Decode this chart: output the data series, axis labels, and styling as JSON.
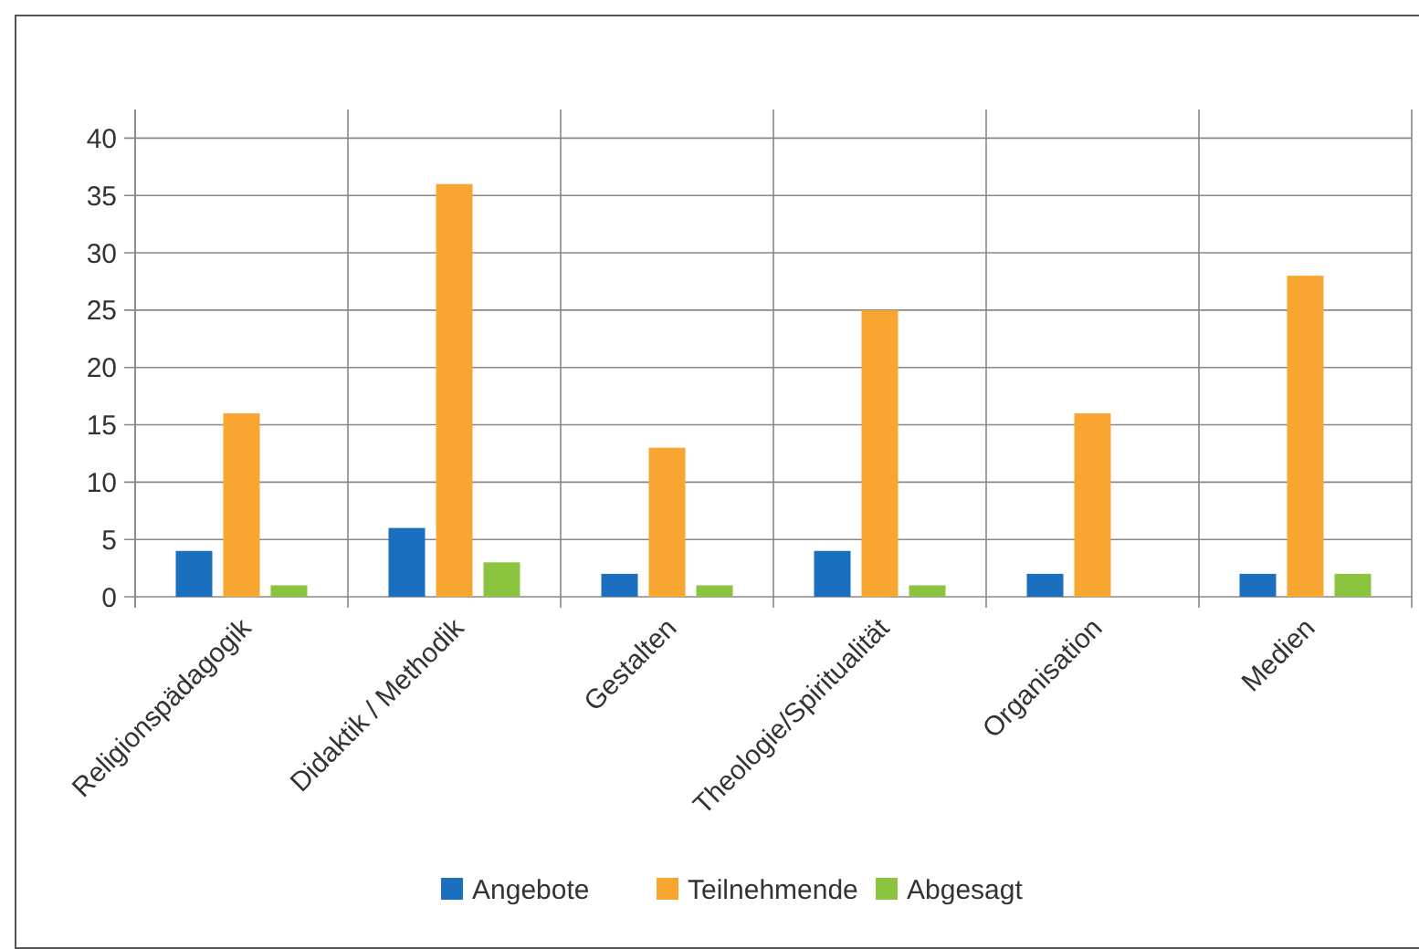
{
  "chart_data": {
    "type": "bar",
    "categories": [
      "Religionspädagogik",
      "Didaktik / Methodik",
      "Gestalten",
      "Theologie/Spiritualität",
      "Organisation",
      "Medien"
    ],
    "series": [
      {
        "name": "Angebote",
        "color": "#1a6fbf",
        "values": [
          4,
          6,
          2,
          4,
          2,
          2
        ]
      },
      {
        "name": "Teilnehmende",
        "color": "#f8a631",
        "values": [
          16,
          36,
          13,
          25,
          16,
          28
        ]
      },
      {
        "name": "Abgesagt",
        "color": "#8bc53f",
        "values": [
          1,
          3,
          1,
          1,
          0,
          2
        ]
      }
    ],
    "ylim": [
      0,
      42.5
    ],
    "yticks": [
      0,
      5,
      10,
      15,
      20,
      25,
      30,
      35,
      40
    ],
    "grid": true,
    "legend": "bottom"
  }
}
